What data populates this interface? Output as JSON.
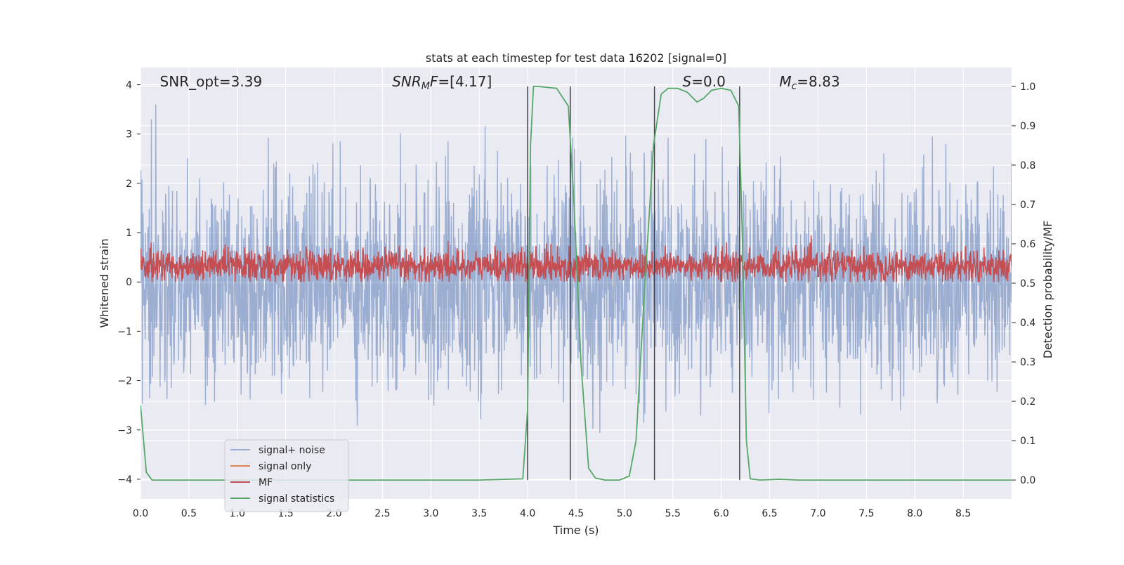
{
  "chart_data": {
    "type": "line",
    "title": "stats at each timestep for test data 16202 [signal=0]",
    "xlabel": "Time (s)",
    "ylabel_left": "Whitened strain",
    "ylabel_right": "Detection probability/MF",
    "xlim": [
      0.0,
      9.0
    ],
    "ylim_left": [
      -4.4,
      4.35
    ],
    "ylim_right": [
      -0.048,
      1.048
    ],
    "xticks": [
      0.0,
      0.5,
      1.0,
      1.5,
      2.0,
      2.5,
      3.0,
      3.5,
      4.0,
      4.5,
      5.0,
      5.5,
      6.0,
      6.5,
      7.0,
      7.5,
      8.0,
      8.5
    ],
    "xtick_labels": [
      "0.0",
      "0.5",
      "1.0",
      "1.5",
      "2.0",
      "2.5",
      "3.0",
      "3.5",
      "4.0",
      "4.5",
      "5.0",
      "5.5",
      "6.0",
      "6.5",
      "7.0",
      "7.5",
      "8.0",
      "8.5"
    ],
    "yticks_left": [
      4,
      3,
      2,
      1,
      0,
      -1,
      -2,
      -3,
      -4
    ],
    "yticks_left_labels": [
      "4",
      "3",
      "2",
      "1",
      "0",
      "−1",
      "−2",
      "−3",
      "−4"
    ],
    "yticks_right": [
      1.0,
      0.9,
      0.8,
      0.7,
      0.6,
      0.5,
      0.4,
      0.3,
      0.2,
      0.1,
      0.0
    ],
    "yticks_right_labels": [
      "1.0",
      "0.9",
      "0.8",
      "0.7",
      "0.6",
      "0.5",
      "0.4",
      "0.3",
      "0.2",
      "0.1",
      "0.0"
    ],
    "grid": true,
    "legend_position": "lower-left",
    "series": [
      {
        "name": "signal+ noise",
        "color": "#4c72b0",
        "axis": "left",
        "style": "noise",
        "amplitude_range": [
          -3.6,
          3.6
        ]
      },
      {
        "name": "signal only",
        "color": "#dd8452",
        "axis": "left",
        "values": []
      },
      {
        "name": "MF",
        "color": "#c44e52",
        "axis": "left",
        "style": "noise",
        "amplitude_range": [
          0.0,
          0.95
        ]
      },
      {
        "name": "signal statistics",
        "color": "#55a868",
        "axis": "right",
        "x": [
          0.0,
          0.06,
          0.12,
          0.2,
          0.5,
          1.0,
          1.5,
          2.0,
          2.5,
          3.0,
          3.5,
          3.95,
          4.0,
          4.03,
          4.06,
          4.1,
          4.3,
          4.42,
          4.48,
          4.55,
          4.63,
          4.7,
          4.8,
          4.95,
          5.05,
          5.12,
          5.2,
          5.3,
          5.38,
          5.45,
          5.55,
          5.65,
          5.75,
          5.82,
          5.9,
          6.0,
          6.1,
          6.18,
          6.22,
          6.26,
          6.3,
          6.4,
          6.6,
          6.8,
          7.0,
          8.0,
          9.0
        ],
        "y": [
          0.19,
          0.02,
          0.0,
          0.0,
          0.0,
          0.0,
          0.0,
          0.0,
          0.0,
          0.0,
          0.0,
          0.003,
          0.18,
          0.85,
          1.0,
          1.0,
          0.995,
          0.95,
          0.7,
          0.3,
          0.03,
          0.005,
          0.0,
          0.0,
          0.01,
          0.1,
          0.45,
          0.85,
          0.98,
          0.995,
          0.995,
          0.985,
          0.96,
          0.97,
          0.99,
          0.995,
          0.99,
          0.95,
          0.6,
          0.1,
          0.003,
          0.0,
          0.002,
          0.0,
          0.0,
          0.0,
          0.0
        ]
      }
    ],
    "vertical_lines": [
      4.0,
      4.44,
      5.31,
      6.19
    ],
    "vertical_lines_range": [
      0.0,
      1.0
    ],
    "annotations": [
      {
        "id": "snr-opt",
        "text": "SNR_opt=3.39",
        "x": 0.2
      },
      {
        "id": "snr-mf",
        "text": "SNR_MF=[4.17]",
        "x": 2.6
      },
      {
        "id": "s",
        "text": "S=0.0",
        "x": 5.6
      },
      {
        "id": "mc",
        "text": "M_c=8.83",
        "x": 6.6
      }
    ]
  }
}
